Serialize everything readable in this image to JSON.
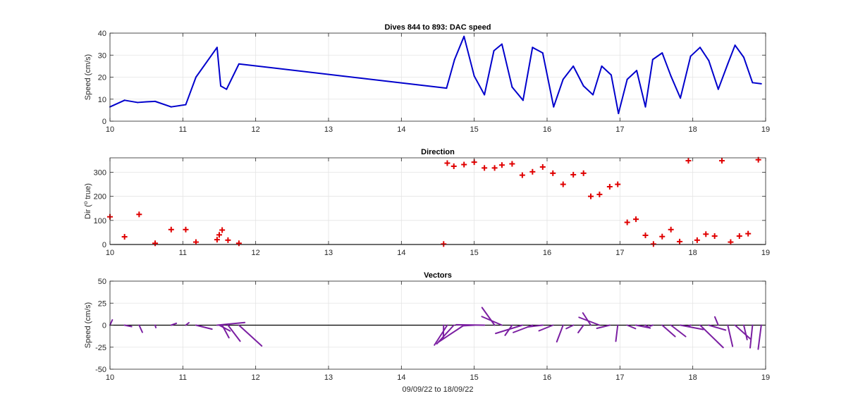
{
  "x_axis_label": "09/09/22 to 18/09/22",
  "chart_data": [
    {
      "type": "line",
      "title": "Dives 844 to 893: DAC speed",
      "xlabel": "",
      "ylabel": "Speed (cm/s)",
      "xlim": [
        10,
        19
      ],
      "ylim": [
        0,
        40
      ],
      "xticks": [
        "10",
        "11",
        "12",
        "13",
        "14",
        "15",
        "16",
        "17",
        "18",
        "19"
      ],
      "yticks": [
        "0",
        "10",
        "20",
        "30",
        "40"
      ],
      "grid": true,
      "color": "#0000cc",
      "series": [
        {
          "x": [
            10.0,
            10.2,
            10.38,
            10.5,
            10.62,
            10.84,
            11.04,
            11.18,
            11.47,
            11.52,
            11.6,
            11.77,
            14.62,
            14.73,
            14.86,
            15.0,
            15.14,
            15.27,
            15.38,
            15.52,
            15.67,
            15.8,
            15.94,
            16.09,
            16.22,
            16.36,
            16.5,
            16.63,
            16.75,
            16.88,
            16.98,
            17.1,
            17.23,
            17.35,
            17.45,
            17.58,
            17.7,
            17.83,
            17.97,
            18.1,
            18.22,
            18.35,
            18.48,
            18.58,
            18.7,
            18.82,
            18.94
          ],
          "y": [
            6.5,
            9.5,
            8.5,
            8.8,
            9.0,
            6.5,
            7.5,
            20,
            33.5,
            16,
            14.5,
            26,
            15,
            28,
            38.5,
            20.5,
            12,
            32,
            35,
            15.5,
            9.5,
            33.5,
            31,
            6.5,
            19,
            25,
            16,
            12,
            25,
            21,
            3.5,
            19,
            23,
            6.5,
            28,
            31,
            20.5,
            10.5,
            29.5,
            33.5,
            27.5,
            14.5,
            26,
            34.5,
            29,
            17.5,
            17
          ]
        }
      ]
    },
    {
      "type": "scatter",
      "title": "Direction",
      "xlabel": "",
      "ylabel": "Dir (o true)",
      "ylabel_parts": [
        "Dir (",
        "o",
        " true)"
      ],
      "xlim": [
        10,
        19
      ],
      "ylim": [
        0,
        360
      ],
      "xticks": [
        "10",
        "11",
        "12",
        "13",
        "14",
        "15",
        "16",
        "17",
        "18",
        "19"
      ],
      "yticks": [
        "0",
        "100",
        "200",
        "300"
      ],
      "grid": true,
      "color": "#e00000",
      "series": [
        {
          "x": [
            10.0,
            10.2,
            10.4,
            10.62,
            10.84,
            11.04,
            11.18,
            11.47,
            11.5,
            11.54,
            11.62,
            11.77,
            14.58,
            14.63,
            14.72,
            14.86,
            15.0,
            15.14,
            15.28,
            15.38,
            15.52,
            15.66,
            15.8,
            15.94,
            16.08,
            16.22,
            16.36,
            16.5,
            16.6,
            16.72,
            16.86,
            16.97,
            17.1,
            17.22,
            17.35,
            17.46,
            17.58,
            17.7,
            17.82,
            17.94,
            18.06,
            18.18,
            18.3,
            18.4,
            18.52,
            18.64,
            18.76,
            18.9
          ],
          "y": [
            115,
            32,
            125,
            5,
            62,
            62,
            10,
            20,
            40,
            60,
            18,
            5,
            2,
            338,
            325,
            332,
            342,
            318,
            318,
            330,
            335,
            288,
            302,
            322,
            296,
            250,
            290,
            296,
            200,
            208,
            240,
            250,
            92,
            105,
            38,
            2,
            33,
            62,
            12,
            348,
            18,
            43,
            35,
            348,
            10,
            35,
            45,
            352
          ]
        }
      ]
    },
    {
      "type": "vector",
      "title": "Vectors",
      "xlabel": "09/09/22 to 18/09/22",
      "ylabel": "Speed (cm/s)",
      "xlim": [
        10,
        19
      ],
      "ylim": [
        -50,
        50
      ],
      "xticks": [
        "10",
        "11",
        "12",
        "13",
        "14",
        "15",
        "16",
        "17",
        "18",
        "19"
      ],
      "yticks": [
        "-50",
        "-25",
        "0",
        "25",
        "50"
      ],
      "grid": true,
      "color": "#7b1fa2",
      "series": [
        {
          "x": [
            10.0,
            10.2,
            10.4,
            10.62,
            10.84,
            11.04,
            11.18,
            11.47,
            11.5,
            11.54,
            11.62,
            11.77,
            14.58,
            14.63,
            14.72,
            14.86,
            15.0,
            15.14,
            15.28,
            15.38,
            15.52,
            15.66,
            15.8,
            15.94,
            16.08,
            16.22,
            16.36,
            16.5,
            16.6,
            16.72,
            16.86,
            16.97,
            17.1,
            17.22,
            17.35,
            17.45,
            17.58,
            17.7,
            17.83,
            17.97,
            18.1,
            18.22,
            18.35,
            18.48,
            18.58,
            18.7,
            18.82,
            18.94
          ],
          "u": [
            2.7,
            8.0,
            3.7,
            0.8,
            5.9,
            3.6,
            18.2,
            31.4,
            12.3,
            7.7,
            13.8,
            25.9,
            -0.4,
            -14.6,
            -19.3,
            -29.0,
            -13.0,
            -32.1,
            -14.3,
            -22.8,
            -8.0,
            -30.3,
            -21.8,
            -17.1,
            -15.8,
            -7.2,
            -8.0,
            -6.1,
            -9.0,
            -23.3,
            -14.6,
            -2.2,
            9.4,
            15.8,
            5.3,
            -2.9,
            14.7,
            16.7,
            25.9,
            -2.8,
            26.2,
            19.1,
            -3.9,
            5.5,
            17.3,
            3.8,
            -2.7,
            -3.5
          ],
          "v": [
            6.0,
            -1.6,
            -8.1,
            -2.8,
            2.1,
            2.8,
            -4.5,
            3.0,
            -6.6,
            -14.3,
            -18.2,
            -23.6,
            -15.0,
            -22.6,
            -21.2,
            -19.2,
            -0.7,
            0.5,
            20.0,
            9.8,
            -11.5,
            -9.4,
            -8.3,
            -2.0,
            -6.4,
            -18.9,
            -3.9,
            -8.5,
            13.9,
            8.9,
            -3.6,
            -18.3,
            -3.9,
            -3.1,
            -3.3,
            -1.0,
            -12.9,
            -12.9,
            -4.9,
            -1.0,
            -25.4,
            -5.6,
            9.4,
            -24.0,
            -15.5,
            -16.4,
            -25.7,
            -27.3
          ],
          "note": "vectors drawn as line segments from (x,0) with east/north components in cm/s"
        }
      ]
    }
  ]
}
